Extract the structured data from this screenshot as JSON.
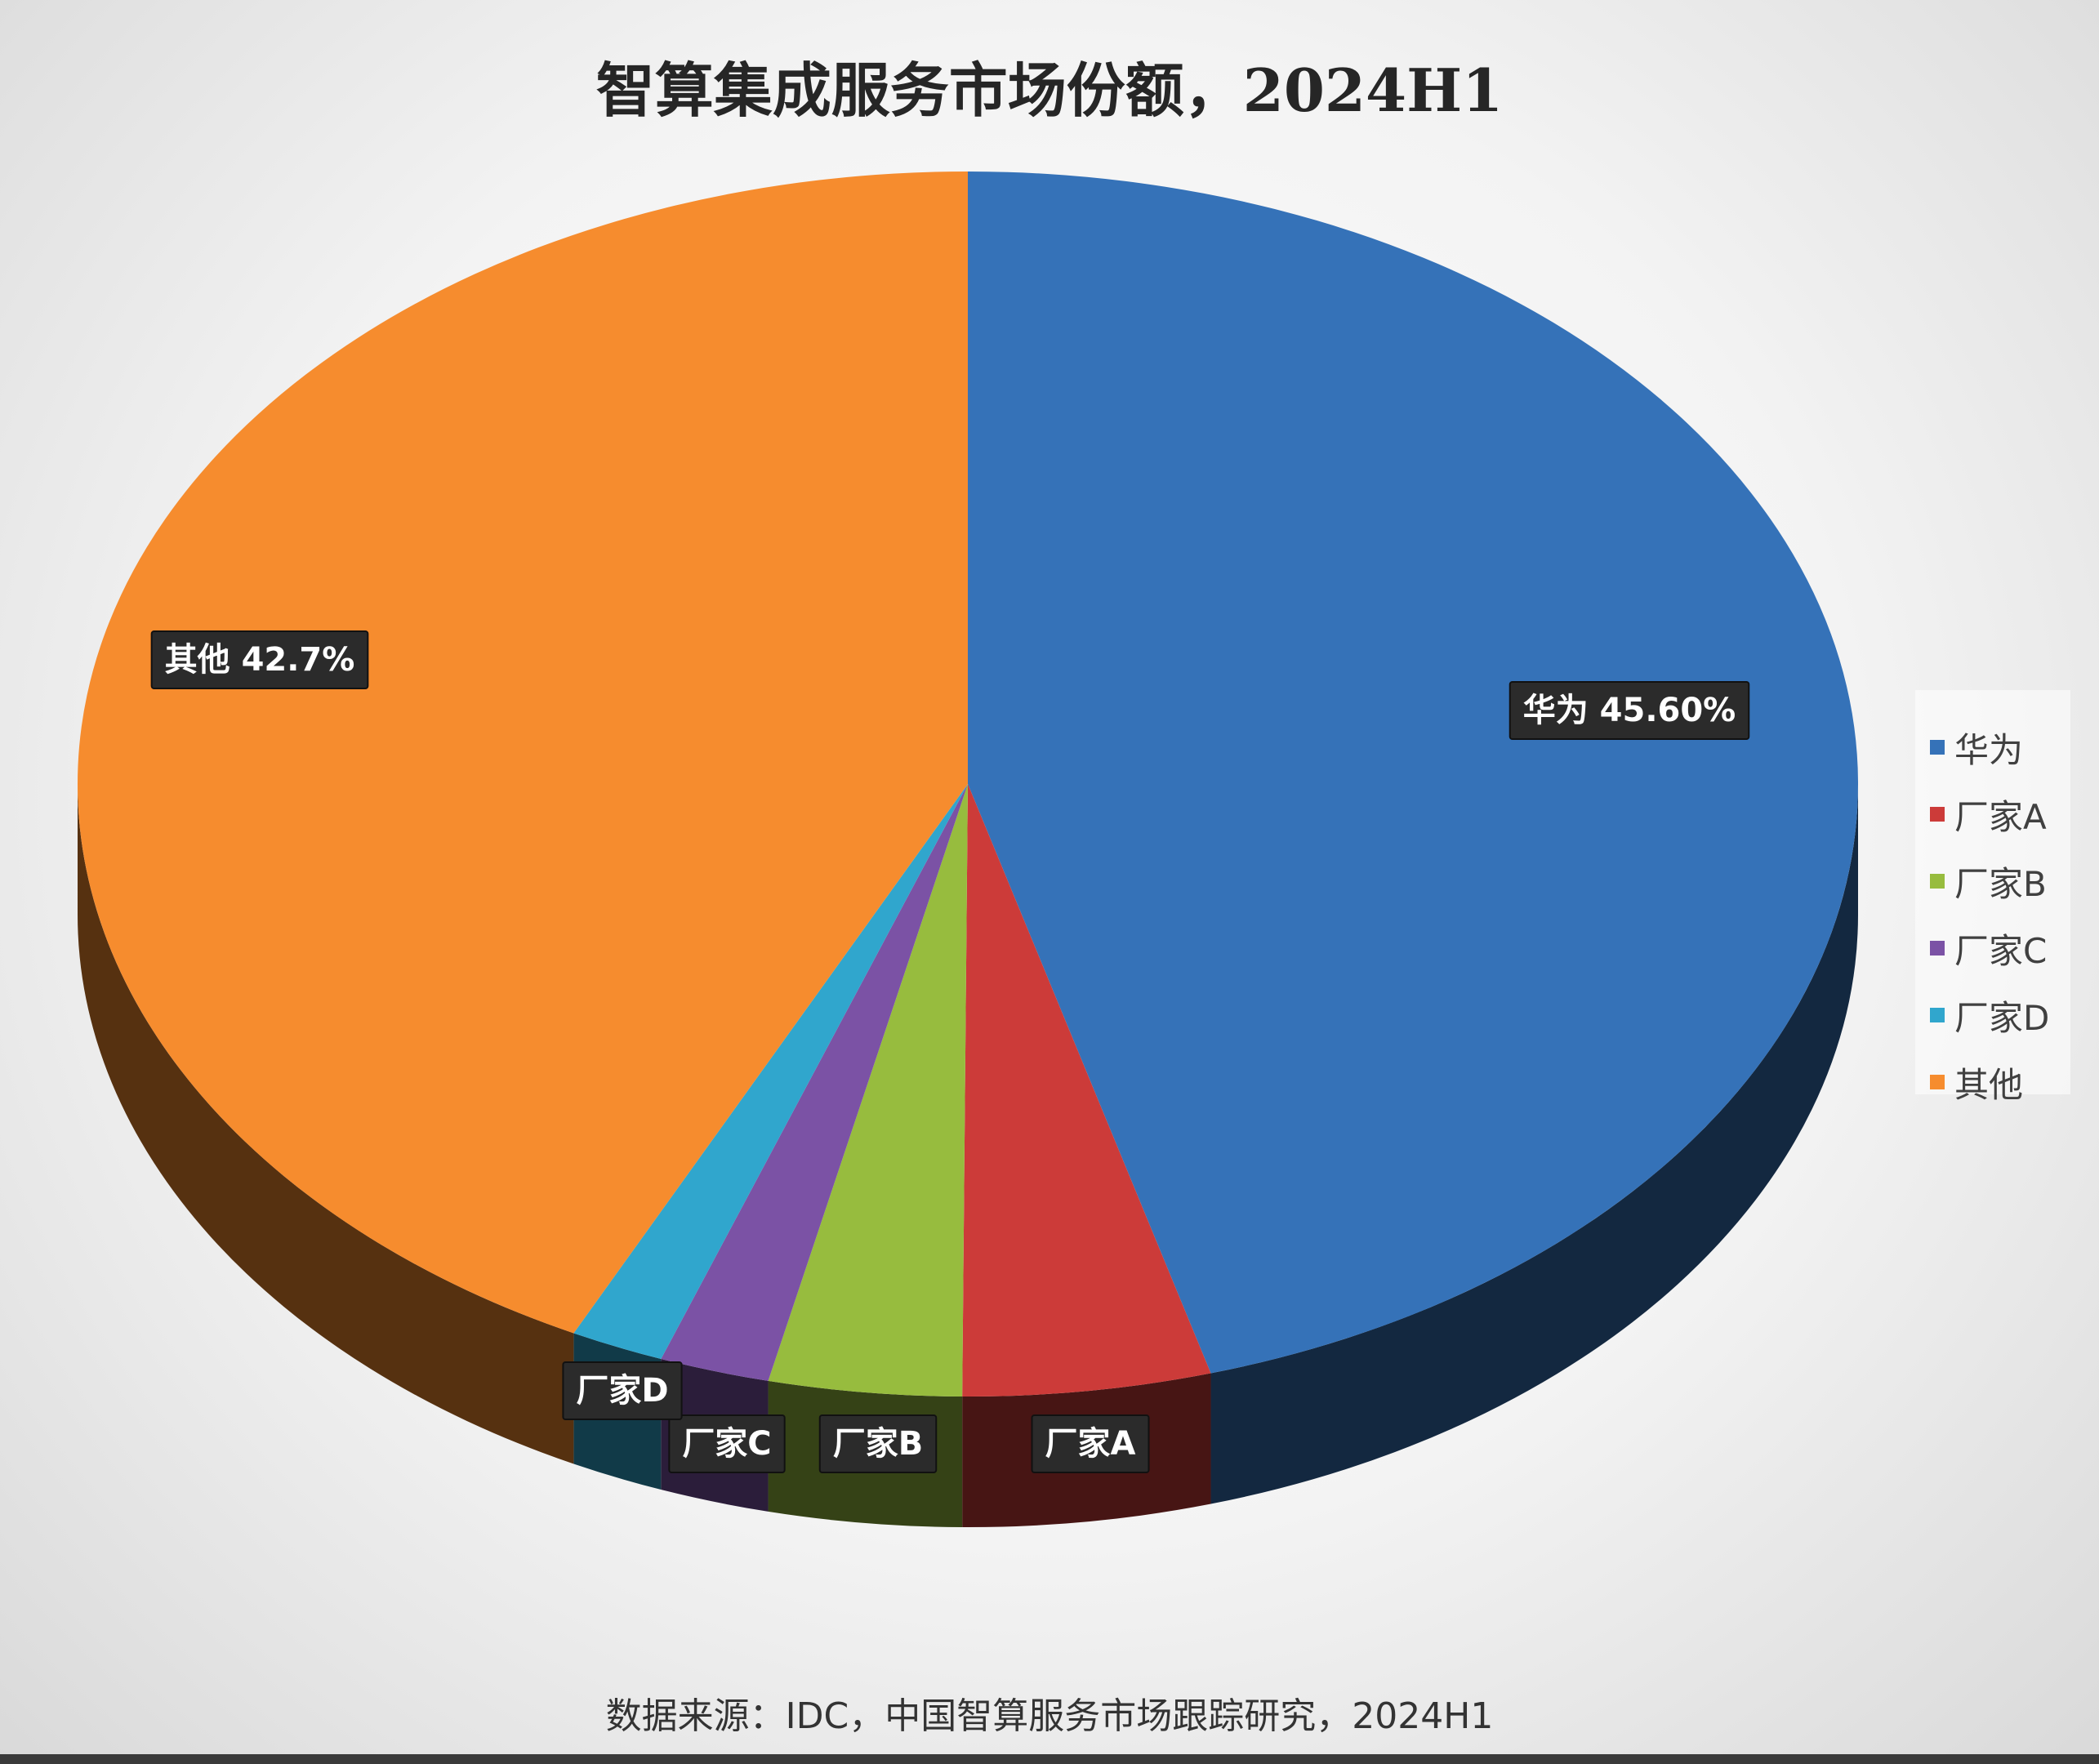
{
  "title": "智算集成服务市场份额，2024H1",
  "source_note": "数据来源：IDC，中国智算服务市场跟踪研究，2024H1",
  "colors": {
    "华为": "#3572B8",
    "厂家A": "#CC3B39",
    "厂家B": "#97BC3E",
    "厂家C": "#7B52A5",
    "厂家D": "#30A6CD",
    "其他": "#F68C2E",
    "label_bg": "#2b2b2b",
    "label_text": "#ffffff"
  },
  "chart_data": {
    "type": "pie",
    "title": "智算集成服务市场份额，2024H1",
    "legend_position": "right",
    "categories": [
      "华为",
      "厂家A",
      "厂家B",
      "厂家C",
      "厂家D",
      "其他"
    ],
    "values": [
      45.6,
      4.5,
      3.5,
      2.0,
      1.7,
      42.7
    ],
    "data_labels": [
      "华为 45.60%",
      "厂家A",
      "厂家B",
      "厂家C",
      "厂家D",
      "其他 42.7%"
    ]
  }
}
